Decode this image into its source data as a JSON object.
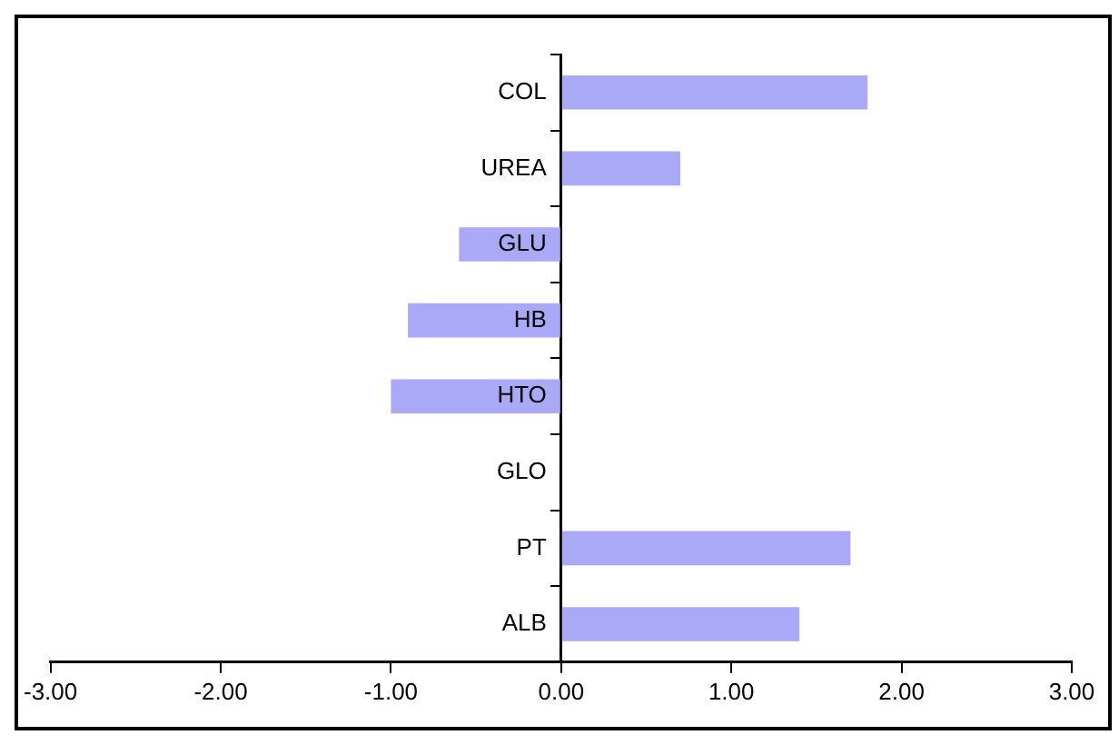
{
  "chart_data": {
    "type": "bar",
    "orientation": "horizontal",
    "categories": [
      "COL",
      "UREA",
      "GLU",
      "HB",
      "HTO",
      "GLO",
      "PT",
      "ALB"
    ],
    "values": [
      1.8,
      0.7,
      -0.6,
      -0.9,
      -1.0,
      0,
      1.7,
      1.4
    ],
    "color": "#a9a9f7",
    "xlim": [
      -3,
      3
    ],
    "xticks": [
      {
        "value": -3,
        "label": "-3.00"
      },
      {
        "value": -2,
        "label": "-2.00"
      },
      {
        "value": -1,
        "label": "-1.00"
      },
      {
        "value": 0,
        "label": "0.00"
      },
      {
        "value": 1,
        "label": "1.00"
      },
      {
        "value": 2,
        "label": "2.00"
      },
      {
        "value": 3,
        "label": "3.00"
      }
    ],
    "grid": false,
    "legend": false
  }
}
